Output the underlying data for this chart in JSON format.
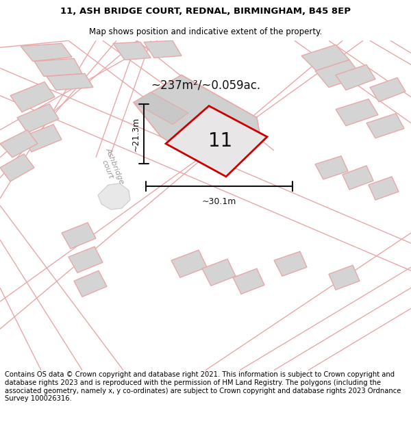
{
  "title_line1": "11, ASH BRIDGE COURT, REDNAL, BIRMINGHAM, B45 8EP",
  "title_line2": "Map shows position and indicative extent of the property.",
  "footer_text": "Contains OS data © Crown copyright and database right 2021. This information is subject to Crown copyright and database rights 2023 and is reproduced with the permission of HM Land Registry. The polygons (including the associated geometry, namely x, y co-ordinates) are subject to Crown copyright and database rights 2023 Ordnance Survey 100026316.",
  "area_label": "~237m²/~0.059ac.",
  "number_label": "11",
  "dim_horizontal": "~30.1m",
  "dim_vertical": "~21.3m",
  "road_label": "Ashbridge\ncourt",
  "bg_color": "#ffffff",
  "building_fill": "#d4d4d4",
  "building_stroke": "#e8a8a8",
  "highlight_fill": "#e8e6e6",
  "highlight_stroke": "#cc0000",
  "road_line_color": "#e8a8a8",
  "dim_color": "#111111",
  "title_fontsize": 9.5,
  "subtitle_fontsize": 8.5,
  "footer_fontsize": 7.2,
  "number_fontsize": 20,
  "road_label_fontsize": 8,
  "area_label_fontsize": 12
}
